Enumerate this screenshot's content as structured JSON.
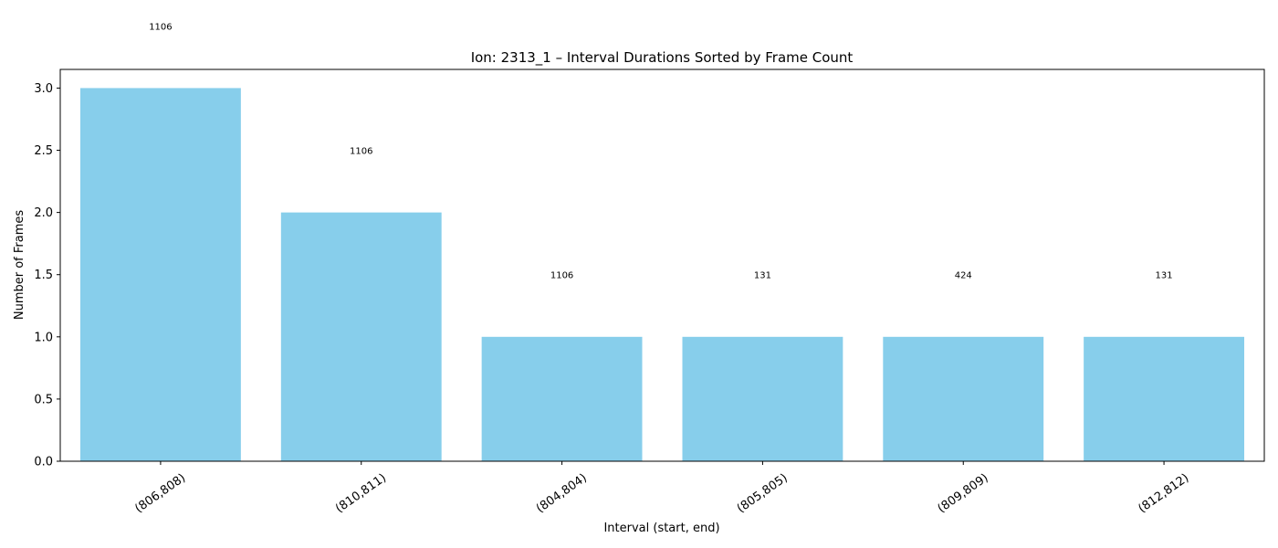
{
  "chart_data": {
    "type": "bar",
    "title": "Ion: 2313_1 – Interval Durations Sorted by Frame Count",
    "xlabel": "Interval (start, end)",
    "ylabel": "Number of Frames",
    "categories": [
      "(806,808)",
      "(810,811)",
      "(804,804)",
      "(805,805)",
      "(809,809)",
      "(812,812)"
    ],
    "values": [
      3,
      2,
      1,
      1,
      1,
      1
    ],
    "bar_labels": [
      "1106",
      "1106",
      "1106",
      "131",
      "424",
      "131"
    ],
    "ylim": [
      0,
      3.15
    ],
    "yticks": [
      0.0,
      0.5,
      1.0,
      1.5,
      2.0,
      2.5,
      3.0
    ],
    "bar_color": "#87CEEB",
    "grid": false,
    "legend": "none"
  }
}
